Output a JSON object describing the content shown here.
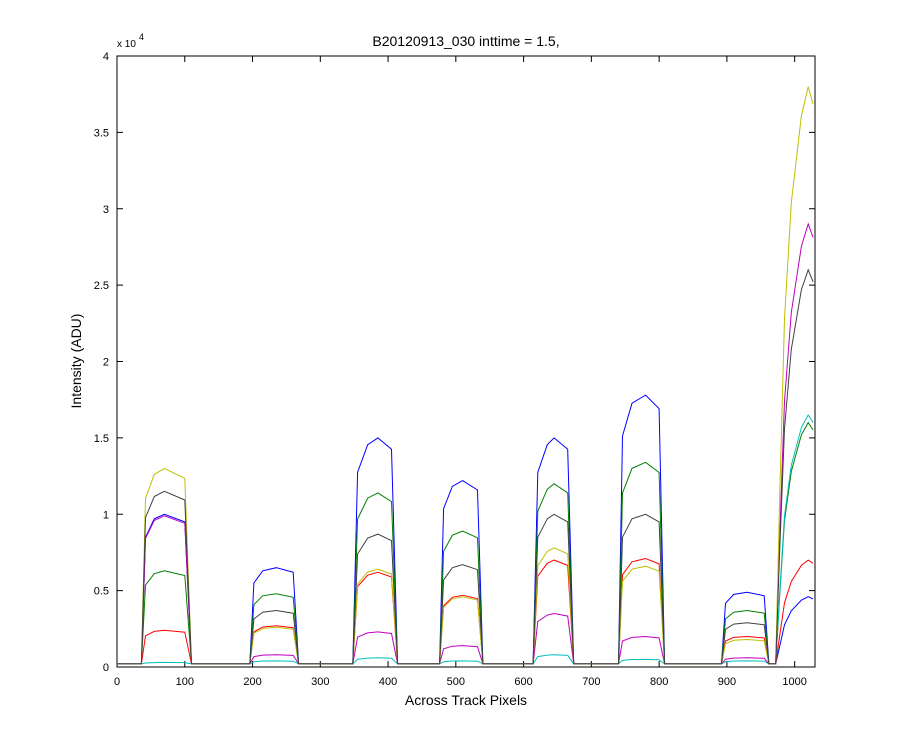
{
  "chart_data": {
    "type": "line",
    "title": "B20120913_030 inttime = 1.5,",
    "x_label": "Across Track Pixels",
    "y_label": "Intensity (ADU)",
    "y_multiplier": "x 10",
    "y_multiplier_exp": "4",
    "xlim": [
      0,
      1030
    ],
    "ylim": [
      0,
      40000
    ],
    "xticks": [
      0,
      100,
      200,
      300,
      400,
      500,
      600,
      700,
      800,
      900,
      1000
    ],
    "yticks": [
      0,
      {
        "value": 5000,
        "label": "0.5"
      },
      {
        "value": 10000,
        "label": "1"
      },
      {
        "value": 15000,
        "label": "1.5"
      },
      {
        "value": 20000,
        "label": "2"
      },
      {
        "value": 25000,
        "label": "2.5"
      },
      {
        "value": 30000,
        "label": "3"
      },
      {
        "value": 35000,
        "label": "3.5"
      },
      {
        "value": 40000,
        "label": "4"
      }
    ],
    "x": [
      0,
      30,
      36,
      42,
      55,
      70,
      100,
      110,
      196,
      202,
      215,
      235,
      260,
      268,
      348,
      355,
      370,
      385,
      405,
      414,
      476,
      482,
      495,
      510,
      532,
      540,
      614,
      621,
      635,
      645,
      665,
      674,
      740,
      746,
      760,
      780,
      800,
      808,
      892,
      898,
      910,
      930,
      955,
      962,
      972,
      978,
      985,
      995,
      1010,
      1020,
      1027
    ],
    "series": [
      {
        "color": "#0000ff",
        "values": [
          200,
          200,
          200,
          8500,
          9700,
          10000,
          9500,
          200,
          200,
          5500,
          6300,
          6500,
          6200,
          200,
          200,
          12750,
          14550,
          15000,
          14250,
          200,
          200,
          10370,
          11830,
          12200,
          11590,
          200,
          200,
          12750,
          14550,
          15000,
          14250,
          200,
          200,
          15130,
          17270,
          17800,
          16910,
          200,
          200,
          4170,
          4750,
          4900,
          4660,
          200,
          200,
          1380,
          2760,
          3680,
          4370,
          4600,
          4460
        ]
      },
      {
        "color": "#008000",
        "values": [
          200,
          200,
          200,
          5360,
          6110,
          6300,
          5990,
          200,
          200,
          4080,
          4660,
          4800,
          4560,
          200,
          200,
          9690,
          11060,
          11400,
          10830,
          200,
          200,
          7570,
          8630,
          8900,
          8460,
          200,
          200,
          10200,
          11640,
          12000,
          11400,
          200,
          200,
          11390,
          13000,
          13400,
          12730,
          200,
          200,
          3150,
          3590,
          3700,
          3520,
          200,
          200,
          4800,
          9600,
          12800,
          15200,
          16000,
          15520
        ]
      },
      {
        "color": "#ff0000",
        "values": [
          200,
          200,
          200,
          2040,
          2330,
          2400,
          2280,
          200,
          200,
          2300,
          2620,
          2700,
          2570,
          200,
          200,
          5270,
          6010,
          6200,
          5890,
          200,
          200,
          4000,
          4560,
          4700,
          4470,
          200,
          200,
          5950,
          6790,
          7000,
          6650,
          200,
          200,
          6040,
          6890,
          7100,
          6750,
          200,
          200,
          1700,
          1940,
          2000,
          1900,
          200,
          200,
          2100,
          4200,
          5600,
          6650,
          7000,
          6790
        ]
      },
      {
        "color": "#00bfbf",
        "values": [
          200,
          200,
          200,
          260,
          290,
          300,
          290,
          200,
          200,
          340,
          390,
          400,
          380,
          200,
          200,
          510,
          580,
          600,
          570,
          200,
          200,
          340,
          390,
          400,
          380,
          200,
          200,
          680,
          780,
          800,
          760,
          200,
          200,
          430,
          490,
          500,
          480,
          200,
          200,
          340,
          390,
          400,
          380,
          200,
          200,
          4950,
          9900,
          13200,
          15680,
          16500,
          16010
        ]
      },
      {
        "color": "#bf00bf",
        "values": [
          200,
          200,
          200,
          8420,
          9600,
          9900,
          9410,
          200,
          200,
          680,
          780,
          800,
          760,
          200,
          200,
          1960,
          2230,
          2300,
          2190,
          200,
          200,
          1190,
          1360,
          1400,
          1330,
          200,
          200,
          2980,
          3400,
          3500,
          3330,
          200,
          200,
          1700,
          1940,
          2000,
          1900,
          200,
          200,
          510,
          580,
          600,
          570,
          200,
          200,
          8700,
          17400,
          23200,
          27550,
          29000,
          28130
        ]
      },
      {
        "color": "#bfbf00",
        "values": [
          200,
          200,
          200,
          11050,
          12610,
          13000,
          12350,
          200,
          200,
          2210,
          2520,
          2600,
          2470,
          200,
          200,
          5440,
          6210,
          6400,
          6080,
          200,
          200,
          3910,
          4460,
          4600,
          4370,
          200,
          200,
          6630,
          7570,
          7800,
          7410,
          200,
          200,
          5610,
          6400,
          6600,
          6270,
          200,
          200,
          1530,
          1750,
          1800,
          1710,
          200,
          200,
          11400,
          22800,
          30400,
          36100,
          38000,
          36860
        ]
      },
      {
        "color": "#404040",
        "values": [
          200,
          200,
          200,
          9780,
          11160,
          11500,
          10930,
          200,
          200,
          3150,
          3590,
          3700,
          3520,
          200,
          200,
          7400,
          8440,
          8700,
          8270,
          200,
          200,
          5700,
          6500,
          6700,
          6370,
          200,
          200,
          8500,
          9700,
          10000,
          9500,
          200,
          200,
          8500,
          9700,
          10000,
          9500,
          200,
          200,
          2470,
          2810,
          2900,
          2760,
          200,
          200,
          7800,
          15600,
          20800,
          24700,
          26000,
          25220
        ]
      }
    ]
  }
}
